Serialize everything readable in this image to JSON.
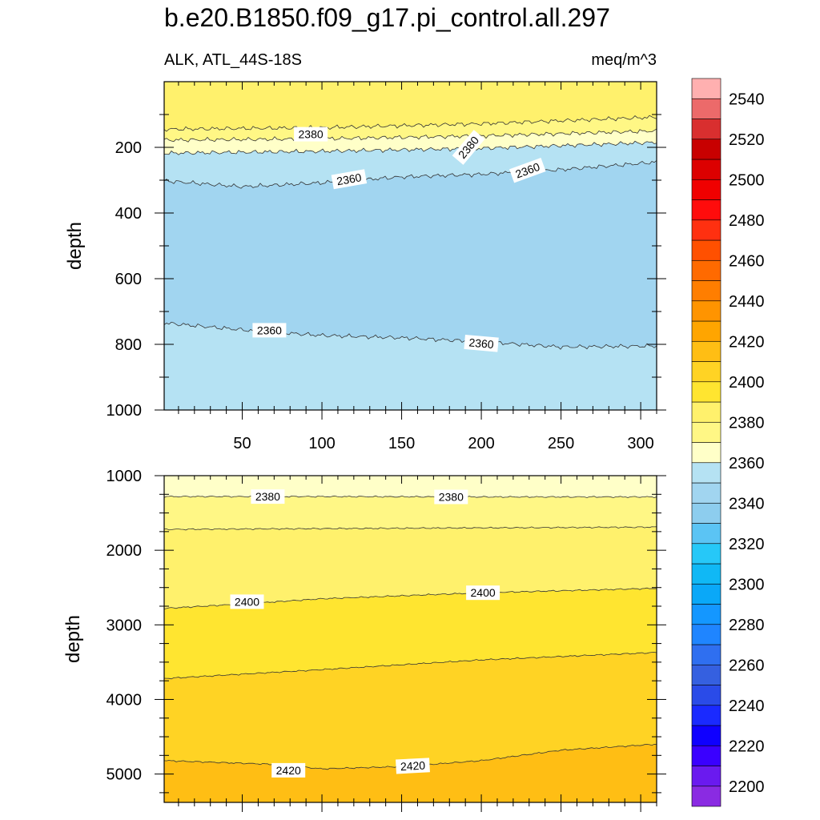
{
  "chart_data": {
    "type": "contour",
    "title": "b.e20.B1850.f09_g17.pi_control.all.297",
    "left_subtitle": "ALK, ATL_44S-18S",
    "right_subtitle": "meq/m^3",
    "ylabel": "depth",
    "xlabel": "",
    "xlim": [
      1,
      310
    ],
    "x_ticks": [
      50,
      100,
      150,
      200,
      250,
      300
    ],
    "panels": [
      {
        "name": "upper",
        "ylim": [
          1000,
          0
        ],
        "y_ticks": [
          200,
          400,
          600,
          800,
          1000
        ],
        "x_tick_labels_shown": true,
        "surface_fill": "#fff16c",
        "bands": [
          {
            "lower": [
              [
                1,
                145
              ],
              [
                100,
                140
              ],
              [
                200,
                128
              ],
              [
                310,
                108
              ]
            ],
            "fill": "#fff785"
          },
          {
            "lower": [
              [
                1,
                178
              ],
              [
                100,
                174
              ],
              [
                200,
                165
              ],
              [
                310,
                150
              ]
            ],
            "fill": "#ffffc8"
          },
          {
            "lower": [
              [
                1,
                218
              ],
              [
                100,
                212
              ],
              [
                200,
                203
              ],
              [
                310,
                185
              ]
            ],
            "fill": "#b5e2f3"
          },
          {
            "lower": [
              [
                1,
                302
              ],
              [
                50,
                320
              ],
              [
                100,
                308
              ],
              [
                150,
                290
              ],
              [
                200,
                282
              ],
              [
                250,
                268
              ],
              [
                310,
                245
              ]
            ],
            "fill": "#a1d5f0"
          },
          {
            "lower": [
              [
                1,
                735
              ],
              [
                60,
                760
              ],
              [
                100,
                773
              ],
              [
                150,
                780
              ],
              [
                200,
                792
              ],
              [
                250,
                808
              ],
              [
                310,
                805
              ]
            ],
            "fill": "#b5e2f3"
          }
        ],
        "contour_labels": [
          {
            "text": "2380",
            "x": 93,
            "depth": 160,
            "angle": 0
          },
          {
            "text": "2380",
            "x": 192,
            "depth": 200,
            "angle": -50
          },
          {
            "text": "2360",
            "x": 117,
            "depth": 297,
            "angle": -10
          },
          {
            "text": "2360",
            "x": 229,
            "depth": 270,
            "angle": -20
          },
          {
            "text": "2360",
            "x": 67,
            "depth": 757,
            "angle": 0
          },
          {
            "text": "2360",
            "x": 200,
            "depth": 797,
            "angle": 5
          }
        ]
      },
      {
        "name": "lower",
        "ylim": [
          5380,
          1000
        ],
        "y_ticks": [
          1000,
          2000,
          3000,
          4000,
          5000
        ],
        "x_tick_labels_shown": false,
        "surface_fill": "#ffffc8",
        "bands": [
          {
            "lower": [
              [
                1,
                1280
              ],
              [
                100,
                1280
              ],
              [
                200,
                1285
              ],
              [
                310,
                1285
              ]
            ],
            "fill": "#fff785"
          },
          {
            "lower": [
              [
                1,
                1720
              ],
              [
                100,
                1710
              ],
              [
                200,
                1700
              ],
              [
                310,
                1690
              ]
            ],
            "fill": "#fff16c"
          },
          {
            "lower": [
              [
                1,
                2780
              ],
              [
                50,
                2720
              ],
              [
                100,
                2650
              ],
              [
                200,
                2570
              ],
              [
                310,
                2510
              ]
            ],
            "fill": "#ffe530"
          },
          {
            "lower": [
              [
                1,
                3720
              ],
              [
                100,
                3600
              ],
              [
                200,
                3470
              ],
              [
                310,
                3370
              ]
            ],
            "fill": "#ffd324"
          },
          {
            "lower": [
              [
                1,
                4820
              ],
              [
                70,
                4870
              ],
              [
                100,
                4930
              ],
              [
                150,
                4900
              ],
              [
                200,
                4820
              ],
              [
                250,
                4680
              ],
              [
                310,
                4600
              ]
            ],
            "fill": "#ffbe14"
          }
        ],
        "contour_labels": [
          {
            "text": "2380",
            "x": 66,
            "depth": 1280,
            "angle": 0
          },
          {
            "text": "2380",
            "x": 181,
            "depth": 1285,
            "angle": 0
          },
          {
            "text": "2400",
            "x": 53,
            "depth": 2690,
            "angle": 0
          },
          {
            "text": "2400",
            "x": 201,
            "depth": 2570,
            "angle": 0
          },
          {
            "text": "2420",
            "x": 79,
            "depth": 4950,
            "angle": 0
          },
          {
            "text": "2420",
            "x": 157,
            "depth": 4890,
            "angle": -3
          }
        ]
      }
    ],
    "colorbar": {
      "labels": [
        "2200",
        "2220",
        "2240",
        "2260",
        "2280",
        "2300",
        "2320",
        "2340",
        "2360",
        "2380",
        "2400",
        "2420",
        "2440",
        "2460",
        "2480",
        "2500",
        "2520",
        "2540"
      ],
      "colors_bottom_to_top": [
        "#8a2be2",
        "#6a1aef",
        "#3a00ff",
        "#0f00ff",
        "#1a2aff",
        "#2a4be8",
        "#3560e0",
        "#2f6ff0",
        "#1f85ff",
        "#1497ff",
        "#0aa8f8",
        "#10b8f5",
        "#26c8f8",
        "#5bc4f4",
        "#8dcdee",
        "#a1d5f0",
        "#b5e2f3",
        "#ffffc8",
        "#fff785",
        "#fff16c",
        "#ffe530",
        "#ffd324",
        "#ffbe14",
        "#ffa500",
        "#ff9400",
        "#ff7e00",
        "#ff6a00",
        "#ff5000",
        "#ff3010",
        "#ff0c0c",
        "#f00000",
        "#dc0000",
        "#c80000",
        "#d92f2f",
        "#ec6a6a",
        "#ffb0b0"
      ]
    }
  }
}
